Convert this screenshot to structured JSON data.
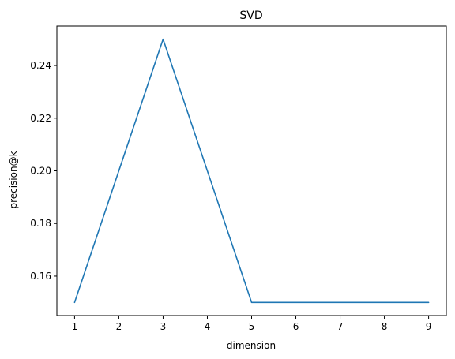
{
  "chart_data": {
    "type": "line",
    "title": "SVD",
    "xlabel": "dimension",
    "ylabel": "precision@k",
    "x": [
      1,
      2,
      3,
      4,
      5,
      6,
      7,
      8,
      9
    ],
    "series": [
      {
        "values": [
          0.15,
          0.2,
          0.25,
          0.2,
          0.15,
          0.15,
          0.15,
          0.15,
          0.15
        ],
        "color": "#1f77b4"
      }
    ],
    "xlim": [
      0.6,
      9.4
    ],
    "ylim": [
      0.145,
      0.255
    ],
    "xticks": [
      1,
      2,
      3,
      4,
      5,
      6,
      7,
      8,
      9
    ],
    "xtick_labels": [
      "1",
      "2",
      "3",
      "4",
      "5",
      "6",
      "7",
      "8",
      "9"
    ],
    "yticks": [
      0.16,
      0.18,
      0.2,
      0.22,
      0.24
    ],
    "ytick_labels": [
      "0.16",
      "0.18",
      "0.20",
      "0.22",
      "0.24"
    ],
    "grid": false,
    "legend": "none"
  }
}
